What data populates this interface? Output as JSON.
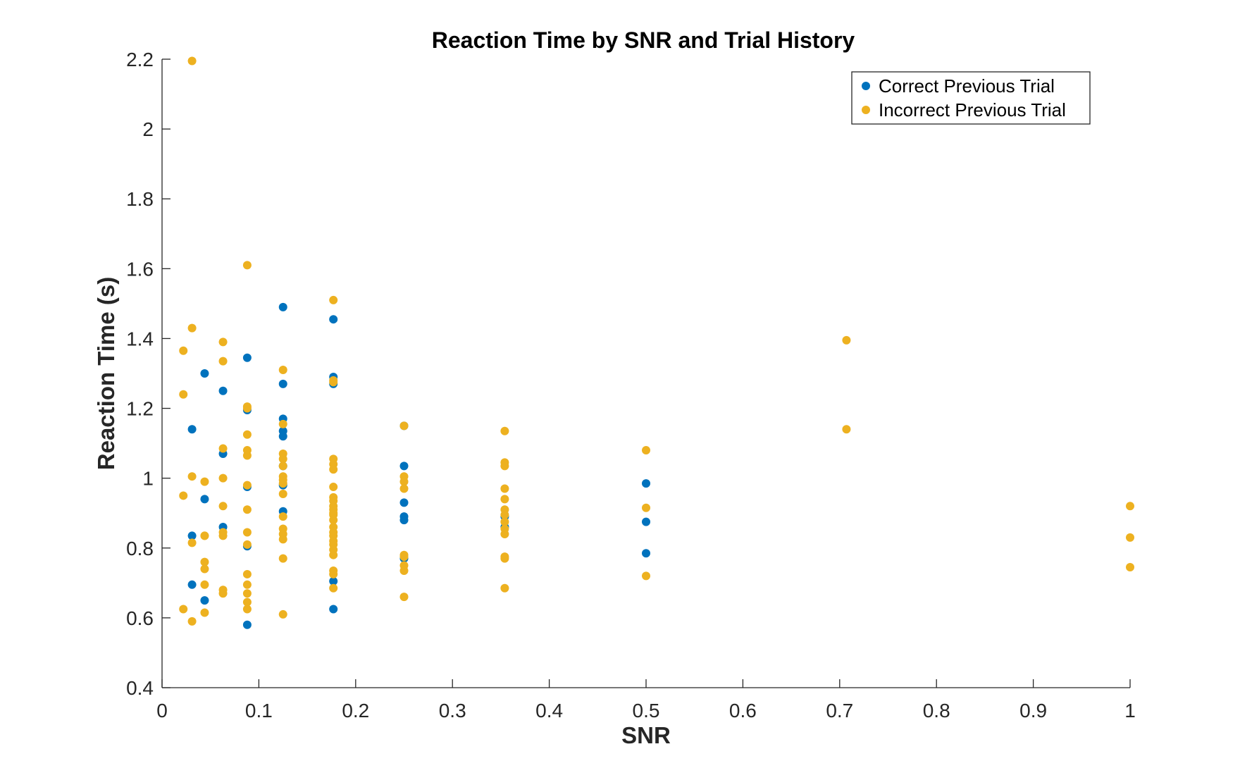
{
  "chart_data": {
    "type": "scatter",
    "title": "Reaction Time by SNR and Trial History",
    "xlabel": "SNR",
    "ylabel": "Reaction Time (s)",
    "xlim": [
      0,
      1
    ],
    "ylim": [
      0.4,
      2.2
    ],
    "xticks": [
      0,
      0.1,
      0.2,
      0.3,
      0.4,
      0.5,
      0.6,
      0.7,
      0.8,
      0.9,
      1
    ],
    "xtick_labels": [
      "0",
      "0.1",
      "0.2",
      "0.3",
      "0.4",
      "0.5",
      "0.6",
      "0.7",
      "0.8",
      "0.9",
      "1"
    ],
    "yticks": [
      0.4,
      0.6,
      0.8,
      1.0,
      1.2,
      1.4,
      1.6,
      1.8,
      2.0,
      2.2
    ],
    "ytick_labels": [
      "0.4",
      "0.6",
      "0.8",
      "1",
      "1.2",
      "1.4",
      "1.6",
      "1.8",
      "2",
      "2.2"
    ],
    "grid": false,
    "legend_position": "top-right",
    "series": [
      {
        "name": "Correct Previous Trial",
        "color": "#0072BD",
        "x": [
          0.031,
          0.031,
          0.031,
          0.044,
          0.044,
          0.044,
          0.063,
          0.063,
          0.063,
          0.088,
          0.088,
          0.088,
          0.088,
          0.088,
          0.125,
          0.125,
          0.125,
          0.125,
          0.125,
          0.125,
          0.125,
          0.125,
          0.177,
          0.177,
          0.177,
          0.177,
          0.177,
          0.25,
          0.25,
          0.25,
          0.25,
          0.25,
          0.25,
          0.354,
          0.354,
          0.5,
          0.5,
          0.5
        ],
        "y": [
          1.14,
          0.835,
          0.695,
          1.3,
          0.94,
          0.65,
          1.25,
          1.07,
          0.86,
          1.345,
          1.195,
          0.975,
          0.805,
          0.58,
          1.49,
          1.27,
          1.17,
          1.135,
          1.12,
          1.035,
          0.98,
          0.905,
          1.455,
          1.29,
          1.27,
          0.705,
          0.625,
          1.15,
          1.035,
          0.93,
          0.89,
          0.88,
          0.77,
          0.89,
          0.86,
          0.985,
          0.875,
          0.785
        ]
      },
      {
        "name": "Incorrect Previous Trial",
        "color": "#EDB120",
        "x": [
          0.022,
          0.022,
          0.022,
          0.022,
          0.031,
          0.031,
          0.031,
          0.031,
          0.031,
          0.044,
          0.044,
          0.044,
          0.044,
          0.044,
          0.044,
          0.044,
          0.063,
          0.063,
          0.063,
          0.063,
          0.063,
          0.063,
          0.063,
          0.063,
          0.063,
          0.088,
          0.088,
          0.088,
          0.088,
          0.088,
          0.088,
          0.088,
          0.088,
          0.088,
          0.088,
          0.088,
          0.088,
          0.088,
          0.088,
          0.088,
          0.125,
          0.125,
          0.125,
          0.125,
          0.125,
          0.125,
          0.125,
          0.125,
          0.125,
          0.125,
          0.125,
          0.125,
          0.125,
          0.125,
          0.125,
          0.177,
          0.177,
          0.177,
          0.177,
          0.177,
          0.177,
          0.177,
          0.177,
          0.177,
          0.177,
          0.177,
          0.177,
          0.177,
          0.177,
          0.177,
          0.177,
          0.177,
          0.177,
          0.177,
          0.177,
          0.177,
          0.177,
          0.177,
          0.177,
          0.25,
          0.25,
          0.25,
          0.25,
          0.25,
          0.25,
          0.25,
          0.25,
          0.25,
          0.354,
          0.354,
          0.354,
          0.354,
          0.354,
          0.354,
          0.354,
          0.354,
          0.354,
          0.354,
          0.354,
          0.354,
          0.354,
          0.5,
          0.5,
          0.5,
          0.707,
          0.707,
          1.0,
          1.0,
          1.0
        ],
        "y": [
          1.365,
          1.24,
          0.95,
          0.625,
          2.195,
          1.43,
          1.005,
          0.815,
          0.59,
          0.99,
          0.835,
          0.76,
          0.74,
          0.695,
          0.615,
          0.835,
          1.39,
          1.335,
          1.085,
          1.0,
          0.92,
          0.845,
          0.835,
          0.68,
          0.67,
          1.61,
          1.205,
          1.125,
          1.08,
          1.065,
          0.98,
          0.91,
          0.845,
          0.81,
          0.725,
          0.695,
          0.67,
          0.645,
          0.625,
          1.2,
          1.31,
          1.155,
          1.07,
          1.055,
          1.035,
          1.005,
          0.995,
          0.955,
          0.89,
          0.855,
          0.84,
          0.825,
          0.77,
          0.61,
          0.985,
          1.51,
          1.28,
          1.275,
          1.055,
          1.04,
          1.025,
          0.975,
          0.945,
          0.935,
          0.92,
          0.91,
          0.895,
          0.88,
          0.86,
          0.845,
          0.835,
          0.82,
          0.81,
          0.795,
          0.78,
          0.735,
          0.725,
          0.685,
          0.9,
          1.15,
          1.005,
          0.99,
          0.97,
          0.78,
          0.775,
          0.75,
          0.735,
          0.66,
          1.135,
          1.045,
          1.035,
          0.97,
          0.94,
          0.91,
          0.895,
          0.875,
          0.855,
          0.84,
          0.775,
          0.77,
          0.685,
          1.08,
          0.915,
          0.72,
          1.395,
          1.14,
          0.92,
          0.83,
          0.745
        ]
      }
    ]
  }
}
